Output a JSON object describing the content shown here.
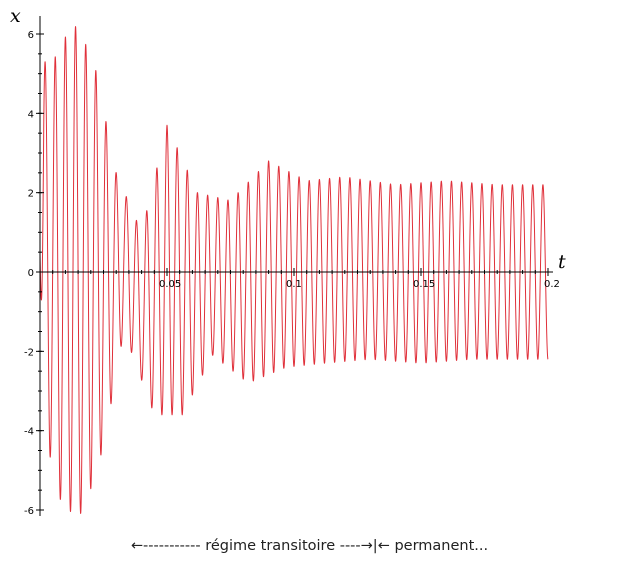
{
  "chart_data": {
    "type": "line",
    "title": "",
    "xlabel": "t",
    "ylabel": "x",
    "xlim": [
      0,
      0.2
    ],
    "ylim": [
      -6,
      6
    ],
    "x_ticks": [
      0.05,
      0.1,
      0.15,
      0.2
    ],
    "x_tick_labels": [
      "0.05",
      "0.1",
      "0.15",
      "0.2"
    ],
    "y_ticks": [
      -6,
      -4,
      -2,
      0,
      2,
      4,
      6
    ],
    "y_tick_labels": [
      "-6",
      "-4",
      "-2",
      "0",
      "2",
      "4",
      "6"
    ],
    "grid": false,
    "color": "#e0303a",
    "series": [
      {
        "envelope_peaks": {
          "t": [
            0.005,
            0.013,
            0.021,
            0.03,
            0.04,
            0.05,
            0.062,
            0.075,
            0.09,
            0.105,
            0.12,
            0.14,
            0.16,
            0.18,
            0.196
          ],
          "x": [
            5.3,
            6.3,
            5.4,
            2.5,
            1.0,
            3.7,
            2.0,
            1.8,
            2.8,
            2.3,
            2.4,
            2.2,
            2.3,
            2.2,
            2.2
          ]
        },
        "envelope_troughs": {
          "t": [
            0.003,
            0.009,
            0.017,
            0.025,
            0.033,
            0.045,
            0.056,
            0.068,
            0.082,
            0.097,
            0.112,
            0.13,
            0.15,
            0.17,
            0.196
          ],
          "x": [
            -4.4,
            -6.0,
            -6.1,
            -4.4,
            -1.5,
            -3.6,
            -3.6,
            -2.1,
            -2.8,
            -2.4,
            -2.3,
            -2.2,
            -2.3,
            -2.2,
            -2.2
          ]
        }
      }
    ]
  },
  "caption": "←----------- régime transitoire  ----→|← permanent..."
}
